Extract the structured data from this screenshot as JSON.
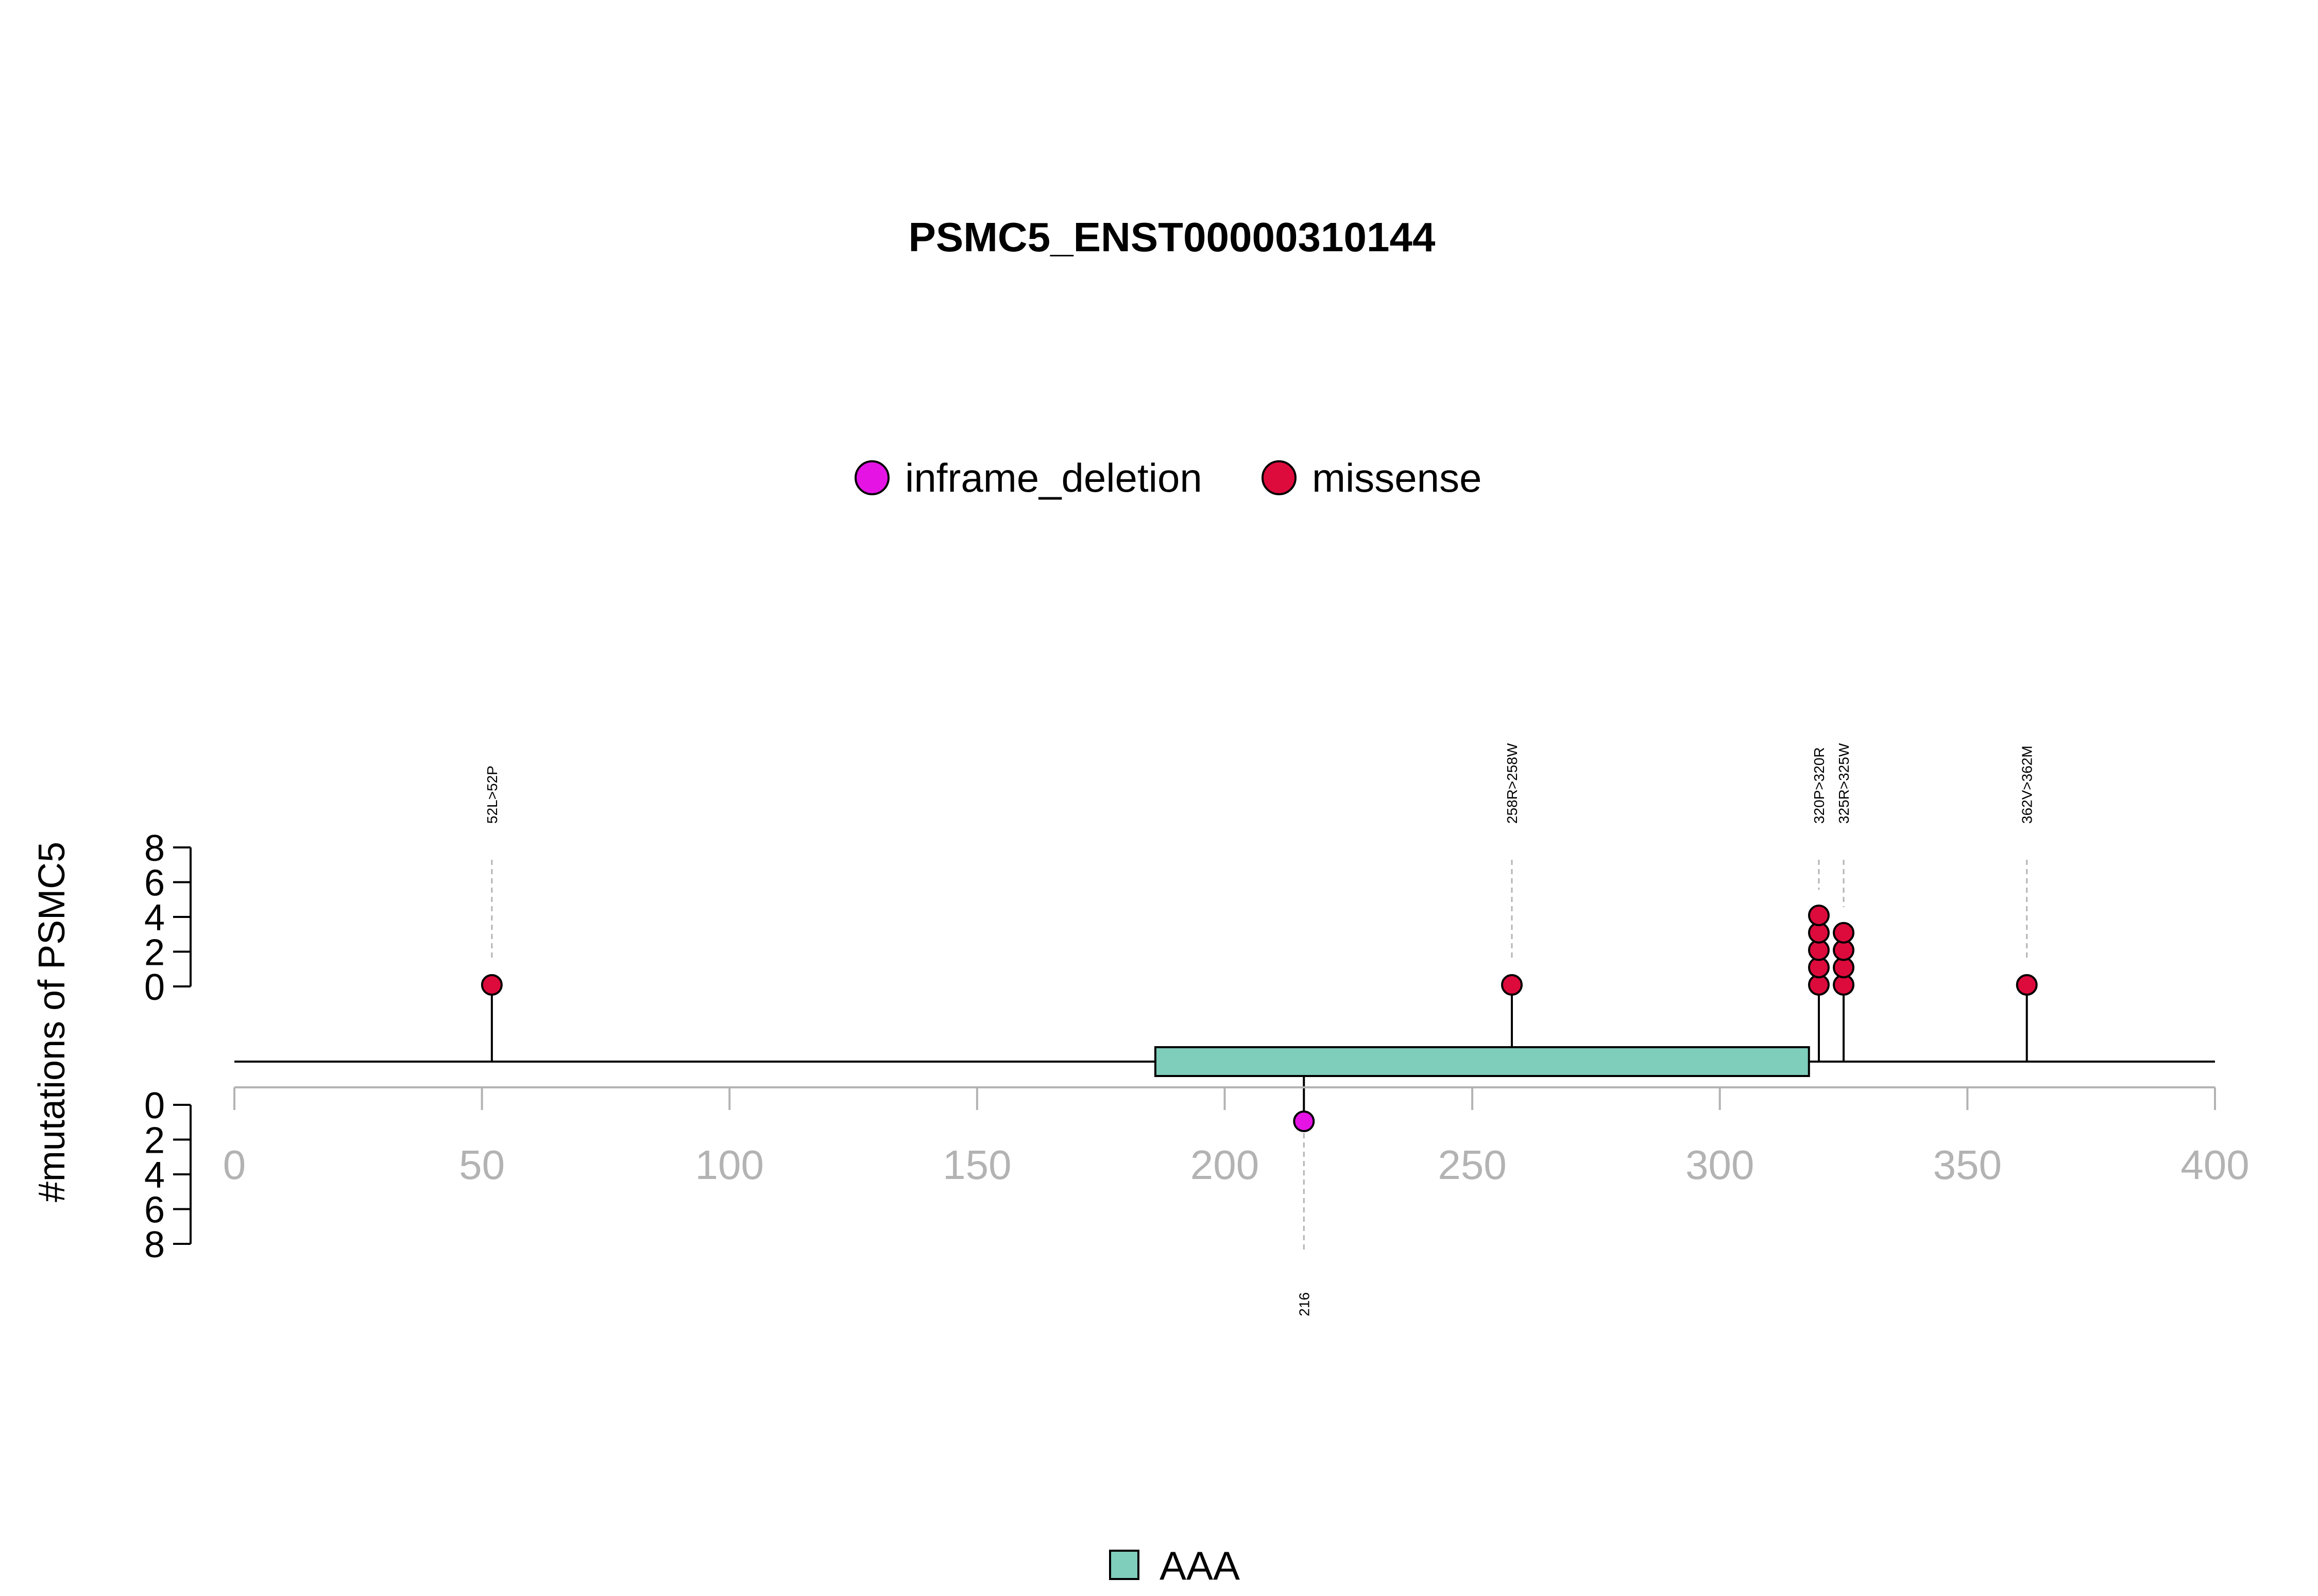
{
  "chart_data": {
    "type": "lollipop",
    "title": "PSMC5_ENST00000310144",
    "ylabel": "#mutations of PSMC5",
    "xlim": [
      0,
      400
    ],
    "x_ticks": [
      0,
      50,
      100,
      150,
      200,
      250,
      300,
      350,
      400
    ],
    "y_ticks": [
      0,
      2,
      4,
      6,
      8
    ],
    "mutation_legend": [
      {
        "name": "inframe_deletion",
        "color": "#e514e5"
      },
      {
        "name": "missense",
        "color": "#dc0b3c"
      }
    ],
    "mutations_top": [
      {
        "position": 52,
        "label": "52L>52P",
        "count": 1,
        "type": "missense"
      },
      {
        "position": 258,
        "label": "258R>258W",
        "count": 1,
        "type": "missense"
      },
      {
        "position": 320,
        "label": "320P>320R",
        "count": 5,
        "type": "missense"
      },
      {
        "position": 325,
        "label": "325R>325W",
        "count": 4,
        "type": "missense"
      },
      {
        "position": 362,
        "label": "362V>362M",
        "count": 1,
        "type": "missense"
      }
    ],
    "mutations_bottom": [
      {
        "position": 216,
        "label": "216",
        "count": 1,
        "type": "inframe_deletion"
      }
    ],
    "domains": [
      {
        "name": "AAA",
        "start": 186,
        "end": 318,
        "color": "#7fcdbb"
      }
    ],
    "domain_legend": [
      {
        "name": "AAA",
        "color": "#7fcdbb"
      }
    ]
  }
}
